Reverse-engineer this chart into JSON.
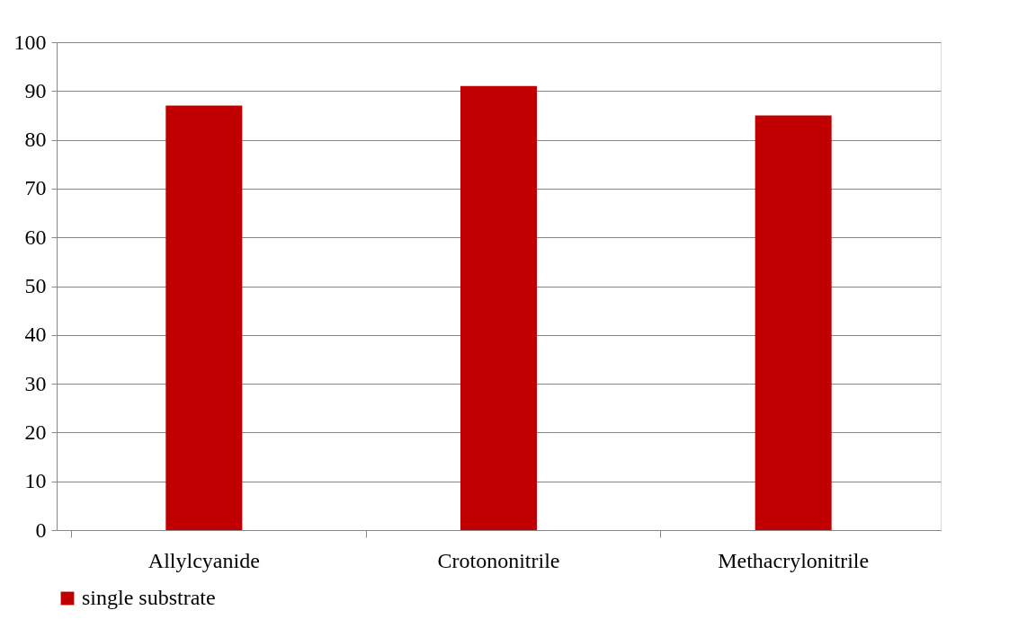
{
  "chart_data": {
    "type": "bar",
    "categories": [
      "Allylcyanide",
      "Crotononitrile",
      "Methacrylonitrile"
    ],
    "series": [
      {
        "name": "single substrate",
        "color": "#c00000",
        "values": [
          87,
          91,
          85
        ]
      }
    ],
    "ylim": [
      0,
      100
    ],
    "yticks": [
      0,
      10,
      20,
      30,
      40,
      50,
      60,
      70,
      80,
      90,
      100
    ],
    "grid": "y",
    "legend": "bottom"
  }
}
